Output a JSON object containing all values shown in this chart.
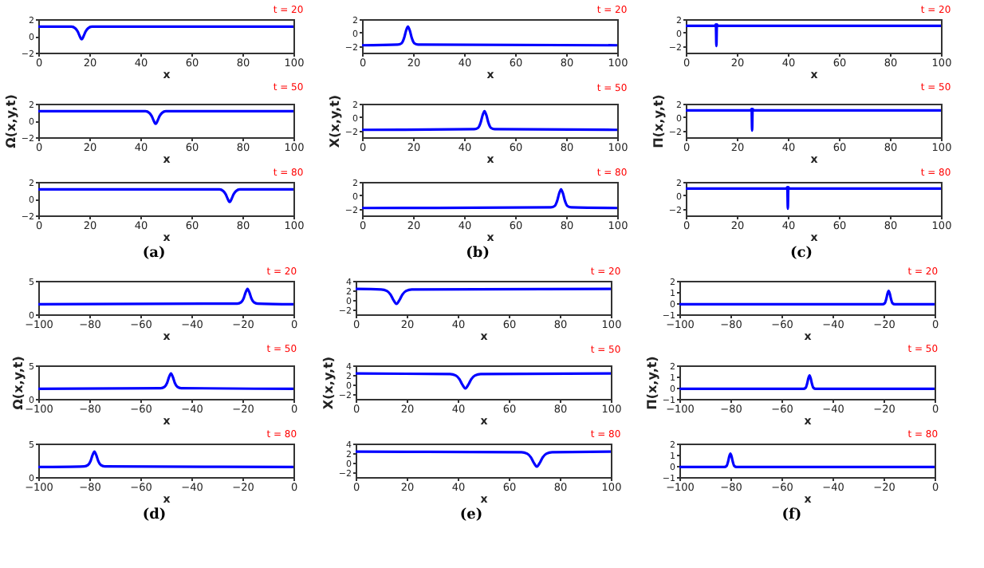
{
  "chart_data": [
    {
      "type": "line",
      "color": "#0000ff",
      "x": [
        0,
        13,
        14.5,
        15.5,
        16.2,
        17,
        17.8,
        18.5,
        19.5,
        21,
        100
      ],
      "values": [
        1.1,
        1.1,
        0.9,
        0.5,
        0,
        -0.4,
        0,
        0.5,
        0.9,
        1.1,
        1.1
      ],
      "xlim": [
        0,
        100
      ],
      "xticks": [
        0,
        20,
        40,
        60,
        80,
        100
      ],
      "ylim": [
        -2,
        2
      ],
      "yticks": [
        -2,
        0,
        2
      ],
      "xlabel": "x",
      "annotations": [
        "t = 20"
      ]
    },
    {
      "type": "line",
      "color": "#0000ff",
      "x": [
        0,
        42,
        43.5,
        44.5,
        45.2,
        46,
        46.8,
        47.5,
        48.5,
        50,
        100
      ],
      "values": [
        1.1,
        1.1,
        0.9,
        0.5,
        0,
        -0.4,
        0,
        0.5,
        0.9,
        1.1,
        1.1
      ],
      "xlim": [
        0,
        100
      ],
      "xticks": [
        0,
        20,
        40,
        60,
        80,
        100
      ],
      "ylim": [
        -2,
        2
      ],
      "yticks": [
        -2,
        0,
        2
      ],
      "xlabel": "x",
      "ylabel": "Ω(x,y,t)",
      "annotations": [
        "t = 50"
      ]
    },
    {
      "type": "line",
      "color": "#0000ff",
      "x": [
        0,
        71,
        72.5,
        73.5,
        74.2,
        75,
        75.8,
        76.5,
        77.5,
        79,
        100
      ],
      "values": [
        1.1,
        1.1,
        0.9,
        0.5,
        0,
        -0.4,
        0,
        0.5,
        0.9,
        1.1,
        1.1
      ],
      "xlim": [
        0,
        100
      ],
      "xticks": [
        0,
        20,
        40,
        60,
        80,
        100
      ],
      "ylim": [
        -2,
        2
      ],
      "yticks": [
        -2,
        0,
        2
      ],
      "xlabel": "x",
      "annotations": [
        "t = 80",
        "(a)"
      ]
    },
    {
      "type": "line",
      "color": "#0000ff",
      "x": [
        0,
        14,
        15.5,
        16.5,
        17.2,
        18,
        18.8,
        19.5,
        20.5,
        22,
        100
      ],
      "values": [
        -1.9,
        -1.8,
        -1.6,
        -0.8,
        0.2,
        0.9,
        0.2,
        -0.8,
        -1.6,
        -1.8,
        -1.9
      ],
      "xlim": [
        0,
        100
      ],
      "xticks": [
        0,
        20,
        40,
        60,
        80,
        100
      ],
      "ylim": [
        -3,
        2
      ],
      "yticks": [
        -2,
        0,
        2
      ],
      "xlabel": "x",
      "annotations": [
        "t = 20"
      ]
    },
    {
      "type": "line",
      "color": "#0000ff",
      "x": [
        0,
        44,
        45.5,
        46.5,
        47.2,
        48,
        48.8,
        49.5,
        50.5,
        52,
        100
      ],
      "values": [
        -1.9,
        -1.8,
        -1.6,
        -0.8,
        0.2,
        0.9,
        0.2,
        -0.8,
        -1.6,
        -1.8,
        -1.9
      ],
      "xlim": [
        0,
        100
      ],
      "xticks": [
        0,
        20,
        40,
        60,
        80,
        100
      ],
      "ylim": [
        -3,
        2
      ],
      "yticks": [
        -2,
        0,
        2
      ],
      "xlabel": "x",
      "ylabel": "X(x,y,t)",
      "annotations": [
        "t = 50"
      ]
    },
    {
      "type": "line",
      "color": "#0000ff",
      "x": [
        0,
        74,
        75.5,
        76.5,
        77.2,
        78,
        78.8,
        79.5,
        80.5,
        82,
        100
      ],
      "values": [
        -1.9,
        -1.8,
        -1.6,
        -0.8,
        0.2,
        0.9,
        0.2,
        -0.8,
        -1.6,
        -1.8,
        -1.9
      ],
      "xlim": [
        0,
        100
      ],
      "xticks": [
        0,
        20,
        40,
        60,
        80,
        100
      ],
      "ylim": [
        -3,
        2
      ],
      "yticks": [
        -2,
        0,
        2
      ],
      "xlabel": "x",
      "annotations": [
        "t = 80",
        "(b)"
      ]
    },
    {
      "type": "line",
      "color": "#0000ff",
      "x": [
        0,
        11.4,
        11.8,
        12,
        12.2,
        12.6,
        100
      ],
      "values": [
        1,
        1,
        1.2,
        -2,
        1.2,
        1,
        1
      ],
      "xlim": [
        0,
        100
      ],
      "xticks": [
        0,
        20,
        40,
        60,
        80,
        100
      ],
      "ylim": [
        -3,
        2
      ],
      "yticks": [
        -2,
        0,
        2
      ],
      "xlabel": "x",
      "annotations": [
        "t = 20"
      ]
    },
    {
      "type": "line",
      "color": "#0000ff",
      "x": [
        0,
        25.4,
        25.8,
        26,
        26.2,
        26.6,
        100
      ],
      "values": [
        1,
        1,
        1.2,
        -2,
        1.2,
        1,
        1
      ],
      "xlim": [
        0,
        100
      ],
      "xticks": [
        0,
        20,
        40,
        60,
        80,
        100
      ],
      "ylim": [
        -3,
        2
      ],
      "yticks": [
        -2,
        0,
        2
      ],
      "xlabel": "x",
      "ylabel": "Π(x,y,t)",
      "annotations": [
        "t = 50"
      ]
    },
    {
      "type": "line",
      "color": "#0000ff",
      "x": [
        0,
        39.4,
        39.8,
        40,
        40.2,
        40.6,
        100
      ],
      "values": [
        1,
        1,
        1.2,
        -2,
        1.2,
        1,
        1
      ],
      "xlim": [
        0,
        100
      ],
      "xticks": [
        0,
        20,
        40,
        60,
        80,
        100
      ],
      "ylim": [
        -3,
        2
      ],
      "yticks": [
        -2,
        0,
        2
      ],
      "xlabel": "x",
      "annotations": [
        "t = 80",
        "(c)"
      ]
    },
    {
      "type": "line",
      "color": "#0000ff",
      "x": [
        -100,
        -22,
        -20.5,
        -19.5,
        -18.8,
        -18,
        -17.2,
        -16.5,
        -15.5,
        -14,
        0
      ],
      "values": [
        1.5,
        1.6,
        1.8,
        2.4,
        3.2,
        3.8,
        3.2,
        2.4,
        1.8,
        1.6,
        1.5
      ],
      "xlim": [
        -100,
        0
      ],
      "xticks": [
        -100,
        -80,
        -60,
        -40,
        -20,
        0
      ],
      "ylim": [
        0,
        5
      ],
      "yticks": [
        0,
        5
      ],
      "xlabel": "x",
      "annotations": [
        "t = 20"
      ]
    },
    {
      "type": "line",
      "color": "#0000ff",
      "x": [
        -100,
        -52,
        -50.5,
        -49.5,
        -48.8,
        -48,
        -47.2,
        -46.5,
        -45.5,
        -44,
        0
      ],
      "values": [
        1.5,
        1.6,
        1.8,
        2.4,
        3.2,
        3.8,
        3.2,
        2.4,
        1.8,
        1.6,
        1.5
      ],
      "xlim": [
        -100,
        0
      ],
      "xticks": [
        -100,
        -80,
        -60,
        -40,
        -20,
        0
      ],
      "ylim": [
        0,
        5
      ],
      "yticks": [
        0,
        5
      ],
      "xlabel": "x",
      "ylabel": "Ω(x,y,t)",
      "annotations": [
        "t = 50"
      ]
    },
    {
      "type": "line",
      "color": "#0000ff",
      "x": [
        -100,
        -82,
        -80.5,
        -79.5,
        -78.8,
        -78,
        -77.2,
        -76.5,
        -75.5,
        -74,
        0
      ],
      "values": [
        1.5,
        1.6,
        1.8,
        2.4,
        3.2,
        3.8,
        3.2,
        2.4,
        1.8,
        1.6,
        1.5
      ],
      "xlim": [
        -100,
        0
      ],
      "xticks": [
        -100,
        -80,
        -60,
        -40,
        -20,
        0
      ],
      "ylim": [
        0,
        5
      ],
      "yticks": [
        0,
        5
      ],
      "xlabel": "x",
      "annotations": [
        "t = 80",
        "(d)"
      ]
    },
    {
      "type": "line",
      "color": "#0000ff",
      "x": [
        0,
        10,
        12.2,
        13.7,
        14.8,
        16,
        17.2,
        18.3,
        19.8,
        22,
        100
      ],
      "values": [
        2.3,
        2.2,
        1.9,
        1.1,
        0,
        -0.8,
        0,
        1.1,
        1.9,
        2.2,
        2.3
      ],
      "xlim": [
        0,
        100
      ],
      "xticks": [
        0,
        20,
        40,
        60,
        80,
        100
      ],
      "ylim": [
        -3,
        4
      ],
      "yticks": [
        -2,
        0,
        2,
        4
      ],
      "xlabel": "x",
      "annotations": [
        "t = 20"
      ]
    },
    {
      "type": "line",
      "color": "#0000ff",
      "x": [
        0,
        37,
        39.2,
        40.7,
        41.8,
        43,
        44.2,
        45.3,
        46.8,
        49,
        100
      ],
      "values": [
        2.3,
        2.2,
        1.9,
        1.1,
        0,
        -0.8,
        0,
        1.1,
        1.9,
        2.2,
        2.3
      ],
      "xlim": [
        0,
        100
      ],
      "xticks": [
        0,
        20,
        40,
        60,
        80,
        100
      ],
      "ylim": [
        -3,
        4
      ],
      "yticks": [
        -2,
        0,
        2,
        4
      ],
      "xlabel": "x",
      "ylabel": "X(x,y,t)",
      "annotations": [
        "t = 50"
      ]
    },
    {
      "type": "line",
      "color": "#0000ff",
      "x": [
        0,
        65,
        67.2,
        68.7,
        69.8,
        71,
        72.2,
        73.3,
        74.8,
        77,
        100
      ],
      "values": [
        2.3,
        2.2,
        1.9,
        1.1,
        0,
        -0.8,
        0,
        1.1,
        1.9,
        2.2,
        2.3
      ],
      "xlim": [
        0,
        100
      ],
      "xticks": [
        0,
        20,
        40,
        60,
        80,
        100
      ],
      "ylim": [
        -3,
        4
      ],
      "yticks": [
        -2,
        0,
        2,
        4
      ],
      "xlabel": "x",
      "annotations": [
        "t = 80",
        "(e)"
      ]
    },
    {
      "type": "line",
      "color": "#0000ff",
      "x": [
        -100,
        -20.4,
        -19.5,
        -18.9,
        -18.5,
        -18,
        -17.5,
        -17.1,
        -16.5,
        -15.6,
        0
      ],
      "values": [
        -0.1,
        -0.1,
        0,
        0.4,
        0.8,
        1.1,
        0.8,
        0.4,
        0,
        -0.1,
        -0.1
      ],
      "xlim": [
        -100,
        0
      ],
      "xticks": [
        -100,
        -80,
        -60,
        -40,
        -20,
        0
      ],
      "ylim": [
        -1,
        2
      ],
      "yticks": [
        -1,
        0,
        1,
        2
      ],
      "xlabel": "x",
      "annotations": [
        "t = 20"
      ]
    },
    {
      "type": "line",
      "color": "#0000ff",
      "x": [
        -100,
        -51.4,
        -50.5,
        -49.9,
        -49.5,
        -49,
        -48.5,
        -48.1,
        -47.5,
        -46.6,
        0
      ],
      "values": [
        -0.1,
        -0.1,
        0,
        0.4,
        0.8,
        1.1,
        0.8,
        0.4,
        0,
        -0.1,
        -0.1
      ],
      "xlim": [
        -100,
        0
      ],
      "xticks": [
        -100,
        -80,
        -60,
        -40,
        -20,
        0
      ],
      "ylim": [
        -1,
        2
      ],
      "yticks": [
        -1,
        0,
        1,
        2
      ],
      "xlabel": "x",
      "ylabel": "Π(x,y,t)",
      "annotations": [
        "t = 50"
      ]
    },
    {
      "type": "line",
      "color": "#0000ff",
      "x": [
        -100,
        -82.4,
        -81.5,
        -80.9,
        -80.5,
        -80,
        -79.5,
        -79.1,
        -78.5,
        -77.6,
        0
      ],
      "values": [
        -0.1,
        -0.1,
        0,
        0.4,
        0.8,
        1.1,
        0.8,
        0.4,
        0,
        -0.1,
        -0.1
      ],
      "xlim": [
        -100,
        0
      ],
      "xticks": [
        -100,
        -80,
        -60,
        -40,
        -20,
        0
      ],
      "ylim": [
        -1,
        2
      ],
      "yticks": [
        -1,
        0,
        1,
        2
      ],
      "xlabel": "x",
      "annotations": [
        "t = 80",
        "(f)"
      ]
    }
  ]
}
